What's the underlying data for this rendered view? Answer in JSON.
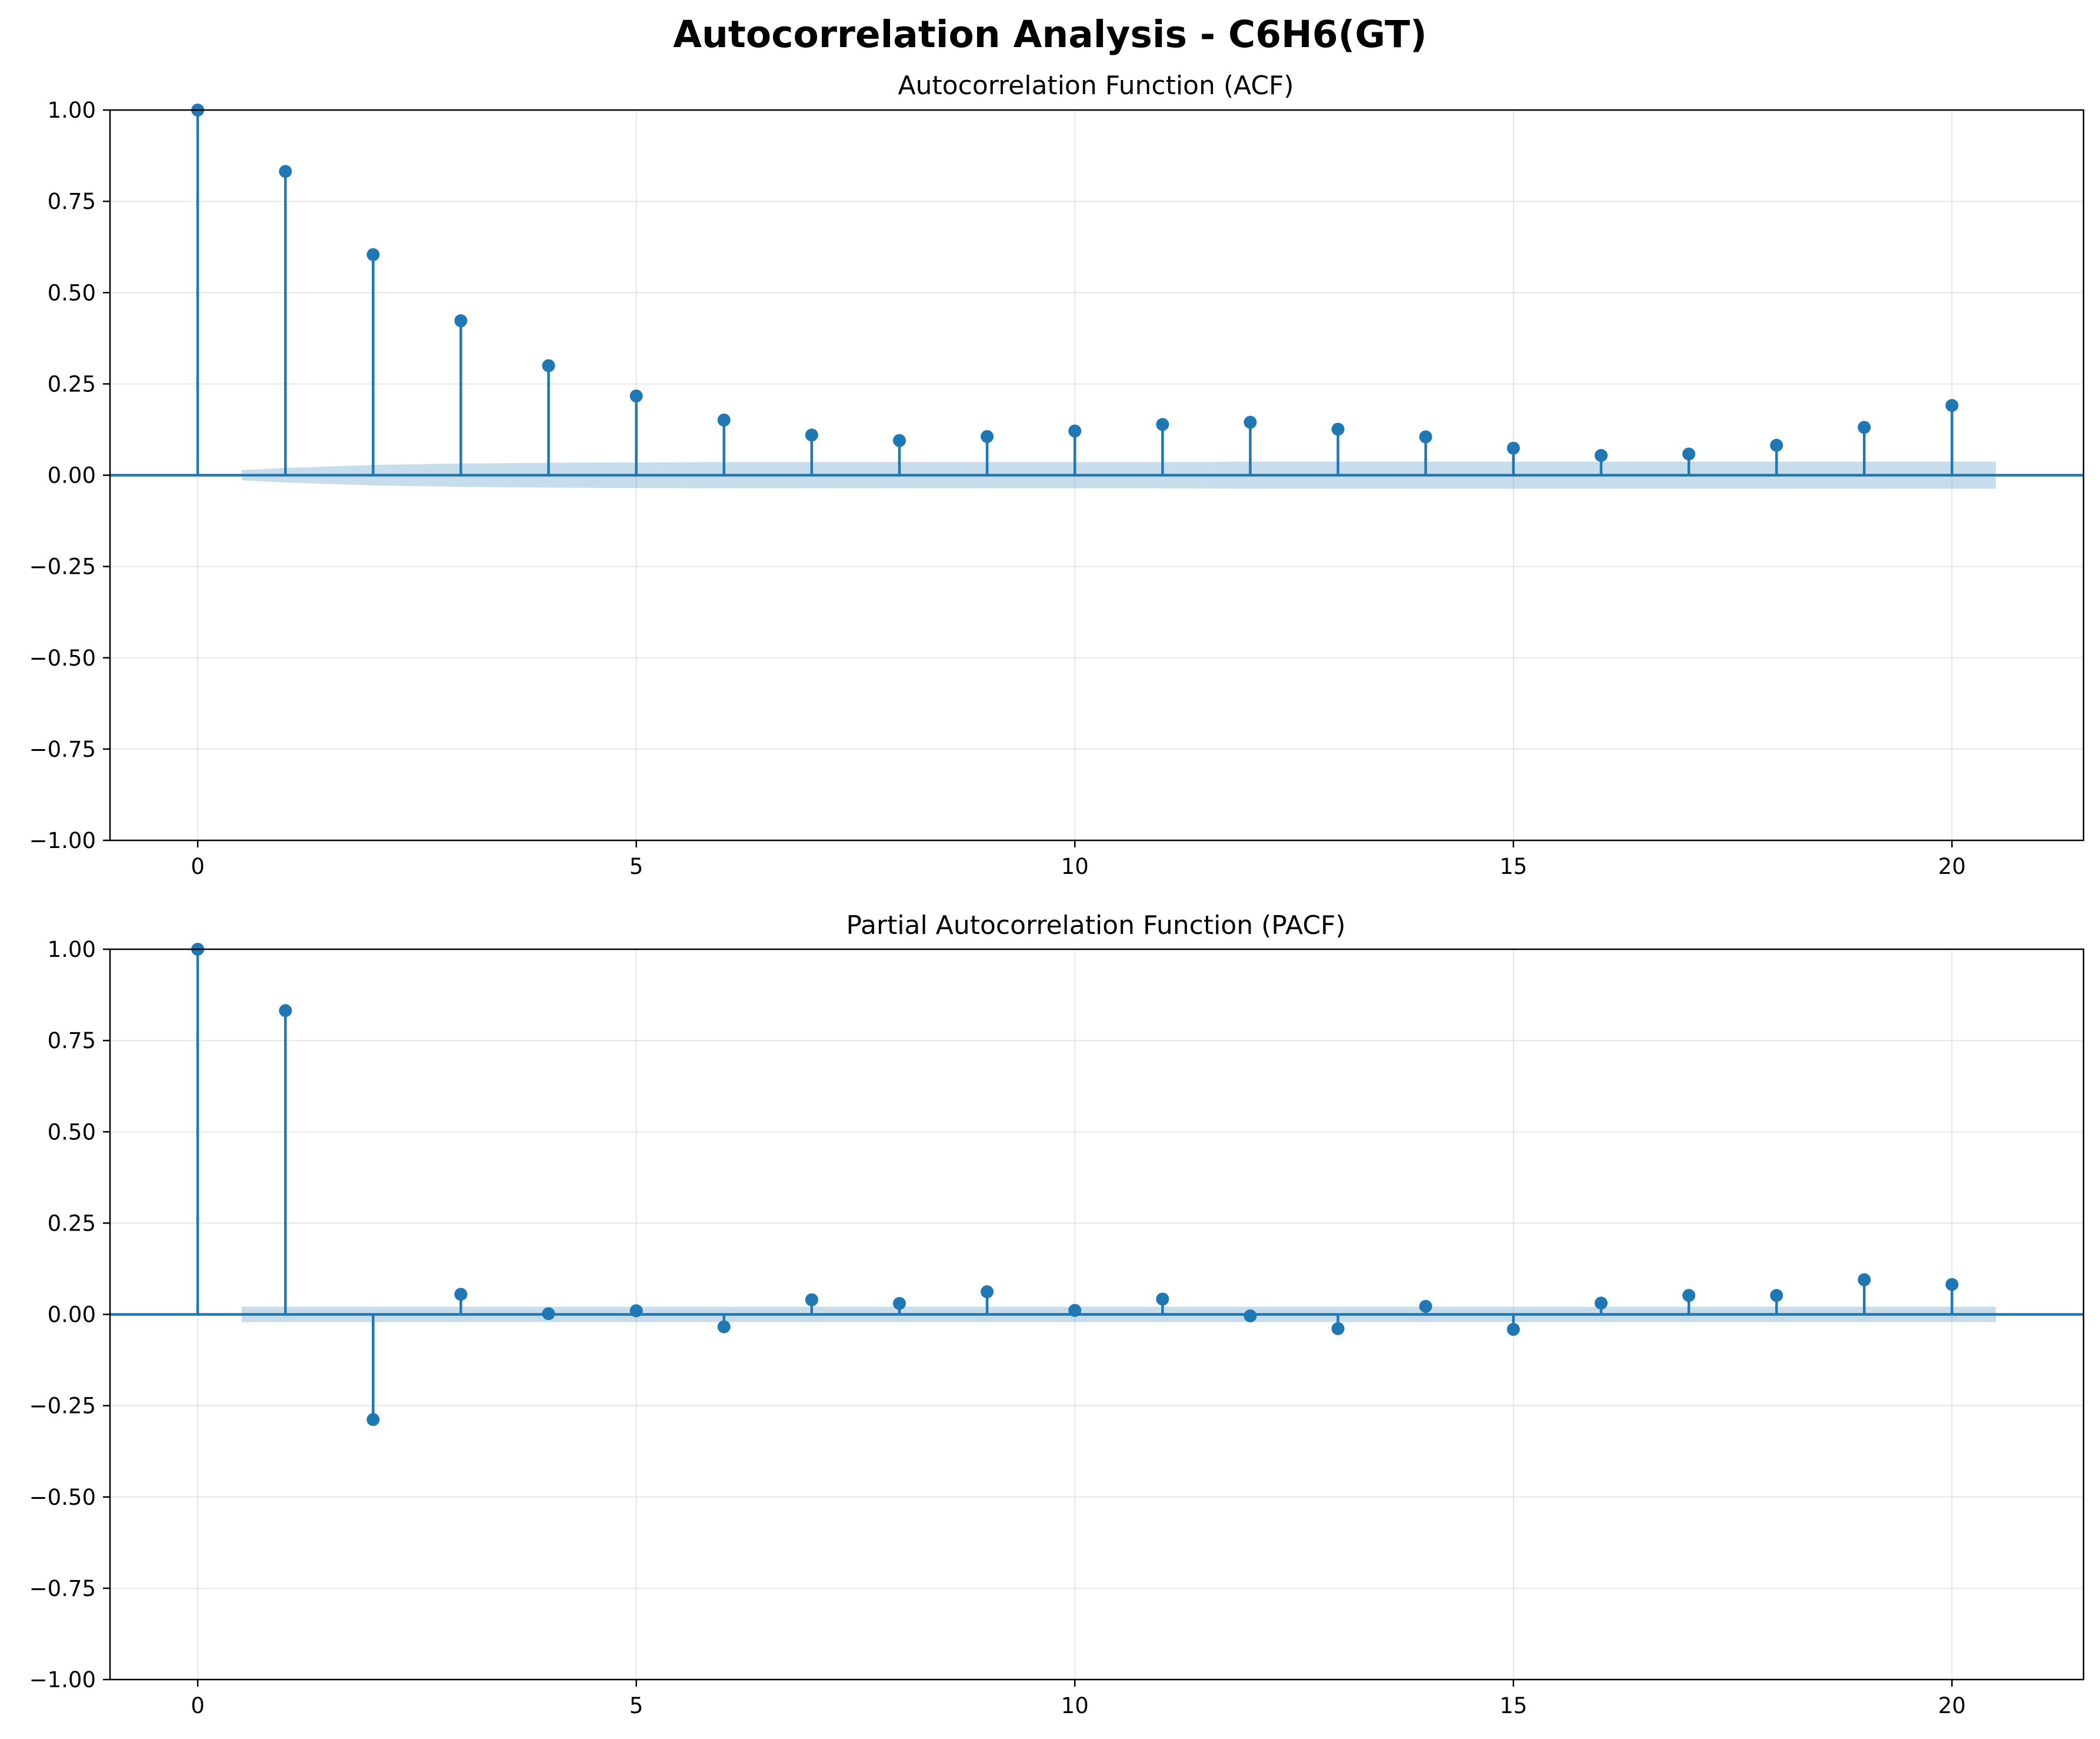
{
  "figure": {
    "title": "Autocorrelation Analysis - C6H6(GT)",
    "colors": {
      "series": "#1f77b4",
      "band": "#1f77b4",
      "grid": "#b0b0b0"
    }
  },
  "chart_data": [
    {
      "type": "stem",
      "title": "Autocorrelation Function (ACF)",
      "xlabel": "",
      "ylabel": "",
      "x": [
        0,
        1,
        2,
        3,
        4,
        5,
        6,
        7,
        8,
        9,
        10,
        11,
        12,
        13,
        14,
        15,
        16,
        17,
        18,
        19,
        20
      ],
      "values": [
        1.0,
        0.832,
        0.604,
        0.423,
        0.3,
        0.217,
        0.151,
        0.11,
        0.095,
        0.106,
        0.121,
        0.139,
        0.145,
        0.126,
        0.105,
        0.074,
        0.054,
        0.058,
        0.082,
        0.131,
        0.191
      ],
      "confidence_band": {
        "x": [
          0.5,
          1,
          2,
          3,
          4,
          5,
          6,
          7,
          8,
          9,
          10,
          11,
          12,
          13,
          14,
          15,
          16,
          17,
          18,
          19,
          20,
          20.5
        ],
        "halfwidth": [
          0.014,
          0.02,
          0.028,
          0.032,
          0.034,
          0.035,
          0.036,
          0.036,
          0.036,
          0.036,
          0.036,
          0.036,
          0.037,
          0.037,
          0.037,
          0.037,
          0.037,
          0.037,
          0.037,
          0.037,
          0.037,
          0.037
        ]
      },
      "xlim": [
        -1,
        21.5
      ],
      "ylim": [
        -1,
        1
      ],
      "xticks": [
        0,
        5,
        10,
        15,
        20
      ],
      "yticks": [
        1.0,
        0.75,
        0.5,
        0.25,
        0.0,
        -0.25,
        -0.5,
        -0.75,
        -1.0
      ],
      "ytick_labels": [
        "1.00",
        "0.75",
        "0.50",
        "0.25",
        "0.00",
        "−0.25",
        "−0.50",
        "−0.75",
        "−1.00"
      ],
      "xtick_labels": [
        "0",
        "5",
        "10",
        "15",
        "20"
      ],
      "grid": true
    },
    {
      "type": "stem",
      "title": "Partial Autocorrelation Function (PACF)",
      "xlabel": "",
      "ylabel": "",
      "x": [
        0,
        1,
        2,
        3,
        4,
        5,
        6,
        7,
        8,
        9,
        10,
        11,
        12,
        13,
        14,
        15,
        16,
        17,
        18,
        19,
        20
      ],
      "values": [
        1.0,
        0.832,
        -0.288,
        0.055,
        0.002,
        0.01,
        -0.034,
        0.04,
        0.03,
        0.062,
        0.011,
        0.042,
        -0.004,
        -0.039,
        0.022,
        -0.041,
        0.031,
        0.052,
        0.052,
        0.095,
        0.082
      ],
      "confidence_band": {
        "x": [
          0.5,
          20.5
        ],
        "halfwidth": [
          0.021,
          0.021
        ]
      },
      "xlim": [
        -1,
        21.5
      ],
      "ylim": [
        -1,
        1
      ],
      "xticks": [
        0,
        5,
        10,
        15,
        20
      ],
      "yticks": [
        1.0,
        0.75,
        0.5,
        0.25,
        0.0,
        -0.25,
        -0.5,
        -0.75,
        -1.0
      ],
      "ytick_labels": [
        "1.00",
        "0.75",
        "0.50",
        "0.25",
        "0.00",
        "−0.25",
        "−0.50",
        "−0.75",
        "−1.00"
      ],
      "xtick_labels": [
        "0",
        "5",
        "10",
        "15",
        "20"
      ],
      "grid": true
    }
  ]
}
